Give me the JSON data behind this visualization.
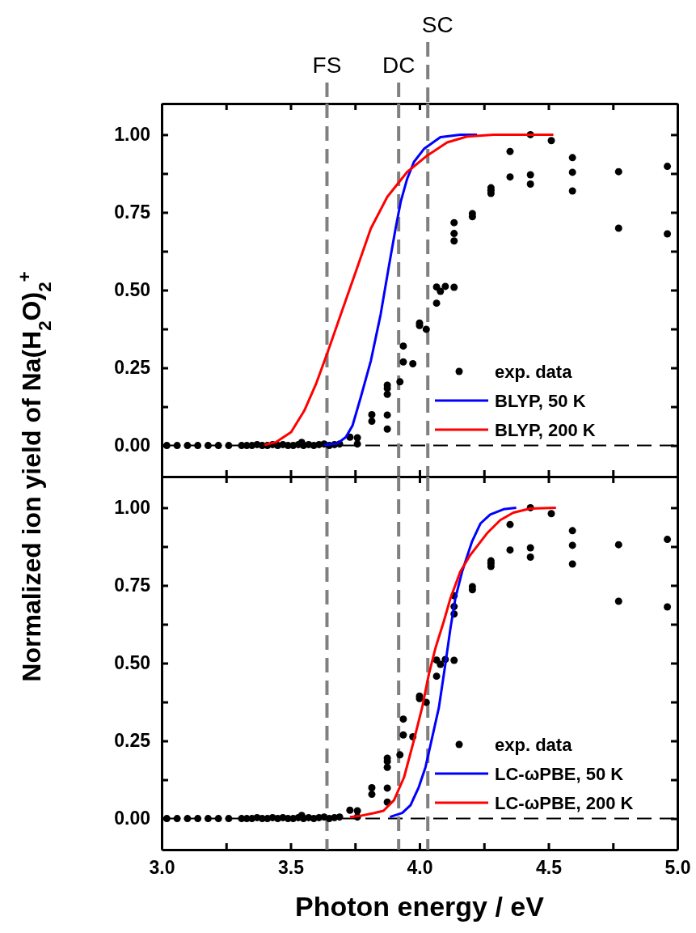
{
  "chart_data": [
    {
      "type": "line",
      "ylabel": "Normalized ion yield of Na(H$_{2}$O)$_{2}$$^{+}$",
      "xlim": [
        3.0,
        5.0
      ],
      "ylim": [
        -0.1,
        1.1
      ],
      "xticks": [
        {
          "value": 3,
          "label": null
        },
        {
          "value": 3.25,
          "label": null
        },
        {
          "value": 3.5,
          "label": null
        },
        {
          "value": 3.75,
          "label": null
        },
        {
          "value": 4,
          "label": null
        },
        {
          "value": 4.25,
          "label": null
        },
        {
          "value": 4.5,
          "label": null
        },
        {
          "value": 4.75,
          "label": null
        },
        {
          "value": 5,
          "label": null
        }
      ],
      "yticks": [
        {
          "value": 0,
          "label": "0.00"
        },
        {
          "value": 0.125,
          "label": null
        },
        {
          "value": 0.25,
          "label": "0.25"
        },
        {
          "value": 0.375,
          "label": null
        },
        {
          "value": 0.5,
          "label": "0.50"
        },
        {
          "value": 0.625,
          "label": null
        },
        {
          "value": 0.75,
          "label": "0.75"
        },
        {
          "value": 0.875,
          "label": null
        },
        {
          "value": 1,
          "label": "1.00"
        }
      ],
      "tick_labels": "y",
      "legend": "bottom right",
      "grid": false,
      "ref_lines": [
        {
          "axis": "y",
          "value": 0,
          "color": "#000000",
          "line_style": "dashed"
        },
        {
          "axis": "x",
          "value": 3.641,
          "label": "FS",
          "color": "#808080",
          "line_style": "dashed"
        },
        {
          "axis": "x",
          "value": 3.919,
          "label": "DC",
          "color": "#808080",
          "line_style": "dashed"
        },
        {
          "axis": "x",
          "value": 4.032,
          "label": "SC",
          "color": "#808080",
          "line_style": "dashed"
        }
      ],
      "series": [
        {
          "name": "exp. data",
          "type": "scatter",
          "marker": "circle",
          "color": "#000000",
          "x": [
            3.02,
            3.06,
            3.1,
            3.14,
            3.18,
            3.22,
            3.26,
            3.31,
            3.33,
            3.35,
            3.37,
            3.39,
            3.41,
            3.43,
            3.45,
            3.47,
            3.49,
            3.51,
            3.53,
            3.543,
            3.55,
            3.57,
            3.59,
            3.61,
            3.63,
            3.65,
            3.67,
            3.69,
            3.73,
            3.759,
            3.759,
            3.815,
            3.815,
            3.875,
            3.875,
            3.875,
            3.875,
            3.875,
            3.924,
            3.937,
            3.937,
            3.974,
            4.0,
            4.0,
            4.026,
            4.066,
            4.066,
            4.081,
            4.1,
            4.134,
            4.134,
            4.134,
            4.134,
            4.205,
            4.205,
            4.277,
            4.277,
            4.277,
            4.351,
            4.351,
            4.43,
            4.43,
            4.43,
            4.511,
            4.593,
            4.593,
            4.593,
            4.772,
            4.772,
            4.961,
            4.961
          ],
          "values": [
            0,
            0,
            0,
            0,
            0,
            0,
            0,
            0,
            0,
            0,
            0.003,
            0,
            0,
            0.003,
            0,
            0.003,
            0,
            0,
            0.003,
            0.01,
            0,
            0.003,
            0,
            0.003,
            0.005,
            0,
            0.003,
            0.005,
            0.027,
            0.025,
            0.005,
            0.099,
            0.078,
            0.194,
            0.184,
            0.165,
            0.098,
            0.053,
            0.205,
            0.32,
            0.269,
            0.263,
            0.394,
            0.386,
            0.374,
            0.51,
            0.458,
            0.496,
            0.512,
            0.509,
            0.717,
            0.682,
            0.658,
            0.746,
            0.736,
            0.829,
            0.821,
            0.811,
            0.946,
            0.864,
            1.0,
            0.871,
            0.841,
            0.981,
            0.926,
            0.879,
            0.819,
            0.881,
            0.699,
            0.898,
            0.681
          ]
        },
        {
          "name": "BLYP, 50 K",
          "color": "#0000ff",
          "x": [
            3.631,
            3.682,
            3.714,
            3.74,
            3.772,
            3.811,
            3.849,
            3.882,
            3.907,
            3.927,
            3.952,
            3.978,
            4.017,
            4.081,
            4.158,
            4.223
          ],
          "values": [
            0.002,
            0.007,
            0.027,
            0.064,
            0.155,
            0.272,
            0.421,
            0.581,
            0.698,
            0.784,
            0.858,
            0.912,
            0.954,
            0.992,
            1.0,
            1.0
          ]
        },
        {
          "name": "BLYP, 200 K",
          "color": "#ff0000",
          "x": [
            3.399,
            3.444,
            3.502,
            3.553,
            3.598,
            3.643,
            3.701,
            3.753,
            3.811,
            3.875,
            3.952,
            4.03,
            4.107,
            4.184,
            4.287,
            4.519
          ],
          "values": [
            0.002,
            0.011,
            0.043,
            0.112,
            0.197,
            0.299,
            0.437,
            0.56,
            0.698,
            0.8,
            0.88,
            0.933,
            0.975,
            0.994,
            1.0,
            1.0
          ]
        }
      ]
    },
    {
      "type": "line",
      "xlabel": "Photon energy / eV",
      "xlim": [
        3.0,
        5.0
      ],
      "ylim": [
        -0.1,
        1.1
      ],
      "xticks": [
        {
          "value": 3,
          "label": "3.0"
        },
        {
          "value": 3.25,
          "label": null
        },
        {
          "value": 3.5,
          "label": "3.5"
        },
        {
          "value": 3.75,
          "label": null
        },
        {
          "value": 4,
          "label": "4.0"
        },
        {
          "value": 4.25,
          "label": null
        },
        {
          "value": 4.5,
          "label": "4.5"
        },
        {
          "value": 4.75,
          "label": null
        },
        {
          "value": 5,
          "label": "5.0"
        }
      ],
      "yticks": [
        {
          "value": 0,
          "label": "0.00"
        },
        {
          "value": 0.125,
          "label": null
        },
        {
          "value": 0.25,
          "label": "0.25"
        },
        {
          "value": 0.375,
          "label": null
        },
        {
          "value": 0.5,
          "label": "0.50"
        },
        {
          "value": 0.625,
          "label": null
        },
        {
          "value": 0.75,
          "label": "0.75"
        },
        {
          "value": 0.875,
          "label": null
        },
        {
          "value": 1,
          "label": "1.00"
        }
      ],
      "legend": "bottom right",
      "grid": false,
      "ref_lines": [
        {
          "axis": "y",
          "value": 0,
          "color": "#000000",
          "line_style": "dashed"
        },
        {
          "axis": "x",
          "value": 3.641,
          "color": "#808080",
          "line_style": "dashed"
        },
        {
          "axis": "x",
          "value": 3.919,
          "color": "#808080",
          "line_style": "dashed"
        },
        {
          "axis": "x",
          "value": 4.032,
          "color": "#808080",
          "line_style": "dashed"
        }
      ],
      "series": [
        {
          "name": "exp. data",
          "type": "scatter",
          "marker": "circle",
          "color": "#000000",
          "x": [
            3.02,
            3.06,
            3.1,
            3.14,
            3.18,
            3.22,
            3.26,
            3.31,
            3.33,
            3.35,
            3.37,
            3.39,
            3.41,
            3.43,
            3.45,
            3.47,
            3.49,
            3.51,
            3.53,
            3.543,
            3.55,
            3.57,
            3.59,
            3.61,
            3.63,
            3.65,
            3.67,
            3.69,
            3.73,
            3.759,
            3.759,
            3.815,
            3.815,
            3.875,
            3.875,
            3.875,
            3.875,
            3.875,
            3.924,
            3.937,
            3.937,
            3.974,
            4.0,
            4.0,
            4.026,
            4.066,
            4.066,
            4.081,
            4.1,
            4.134,
            4.134,
            4.134,
            4.134,
            4.205,
            4.205,
            4.277,
            4.277,
            4.277,
            4.351,
            4.351,
            4.43,
            4.43,
            4.43,
            4.511,
            4.593,
            4.593,
            4.593,
            4.772,
            4.772,
            4.961,
            4.961
          ],
          "values": [
            0,
            0,
            0,
            0,
            0,
            0,
            0,
            0,
            0,
            0,
            0.003,
            0,
            0,
            0.003,
            0,
            0.003,
            0,
            0,
            0.003,
            0.01,
            0,
            0.003,
            0,
            0.003,
            0.005,
            0,
            0.003,
            0.005,
            0.027,
            0.025,
            0.005,
            0.099,
            0.078,
            0.194,
            0.184,
            0.165,
            0.098,
            0.053,
            0.205,
            0.32,
            0.269,
            0.263,
            0.394,
            0.386,
            0.374,
            0.51,
            0.458,
            0.496,
            0.512,
            0.509,
            0.717,
            0.682,
            0.658,
            0.746,
            0.736,
            0.829,
            0.821,
            0.811,
            0.946,
            0.864,
            1.0,
            0.871,
            0.841,
            0.981,
            0.926,
            0.879,
            0.819,
            0.881,
            0.699,
            0.898,
            0.681
          ]
        },
        {
          "name": "LC-ωPBE, 50 K",
          "color": "#0000ff",
          "x": [
            3.885,
            3.933,
            3.965,
            3.997,
            4.023,
            4.049,
            4.075,
            4.1,
            4.12,
            4.139,
            4.165,
            4.203,
            4.236,
            4.274,
            4.326,
            4.375
          ],
          "values": [
            0.005,
            0.018,
            0.043,
            0.101,
            0.165,
            0.261,
            0.357,
            0.496,
            0.613,
            0.709,
            0.794,
            0.89,
            0.949,
            0.978,
            0.995,
            1.0
          ]
        },
        {
          "name": "LC-ωPBE, 200 K",
          "color": "#ff0000",
          "x": [
            3.73,
            3.772,
            3.824,
            3.86,
            3.901,
            3.94,
            3.978,
            4.01,
            4.036,
            4.062,
            4.094,
            4.12,
            4.158,
            4.197,
            4.261,
            4.313,
            4.364,
            4.429,
            4.529
          ],
          "values": [
            0.005,
            0.009,
            0.018,
            0.025,
            0.059,
            0.133,
            0.251,
            0.357,
            0.464,
            0.549,
            0.634,
            0.709,
            0.794,
            0.848,
            0.917,
            0.96,
            0.984,
            0.997,
            1.0
          ]
        }
      ]
    }
  ]
}
